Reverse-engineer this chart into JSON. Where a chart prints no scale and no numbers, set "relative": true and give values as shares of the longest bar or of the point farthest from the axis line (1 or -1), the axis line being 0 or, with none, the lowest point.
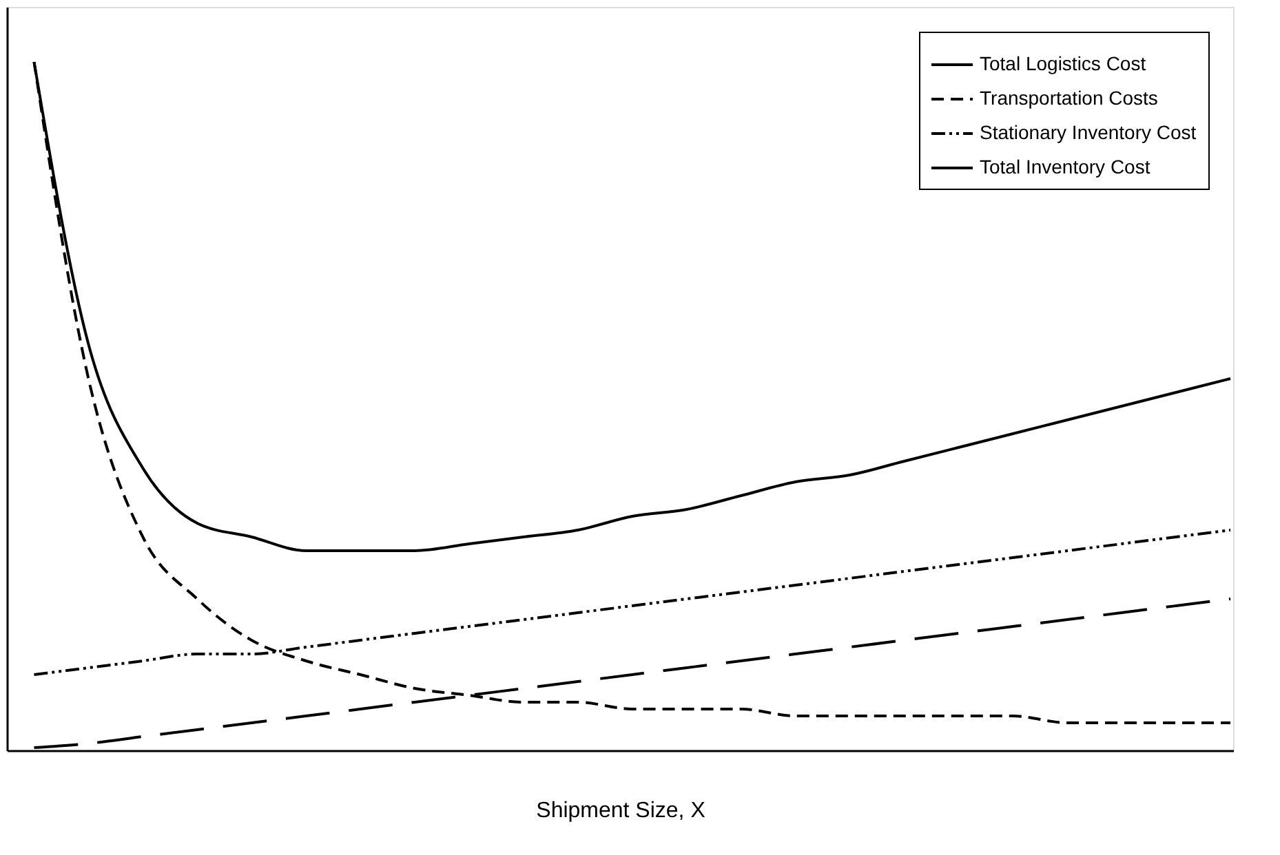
{
  "chart_data": {
    "type": "line",
    "relative": true,
    "xlabel": "Shipment Size, X",
    "tick_labels": false,
    "grid": false,
    "legend": "top right",
    "marker": "none",
    "categories": [
      null,
      null,
      null,
      null,
      null,
      null,
      null,
      null,
      null,
      null,
      null,
      null,
      null,
      null,
      null,
      null,
      null,
      null,
      null,
      null,
      null,
      null,
      null
    ],
    "series": [
      {
        "name": "Total Logistics Cost",
        "color": "#000000",
        "line_style": "solid",
        "values": [
          1.0,
          0.59,
          0.41,
          0.33,
          0.31,
          0.29,
          0.29,
          0.29,
          0.3,
          0.31,
          0.32,
          0.34,
          0.35,
          0.37,
          0.39,
          0.4,
          0.42,
          0.44,
          0.46,
          0.48,
          0.5,
          0.52,
          0.54
        ]
      },
      {
        "name": "Transportation Costs",
        "color": "#000000",
        "line_style": "dashed",
        "values": [
          1.0,
          0.54,
          0.31,
          0.22,
          0.16,
          0.13,
          0.11,
          0.09,
          0.08,
          0.07,
          0.07,
          0.06,
          0.06,
          0.06,
          0.05,
          0.05,
          0.05,
          0.05,
          0.05,
          0.04,
          0.04,
          0.04,
          0.04
        ]
      },
      {
        "name": "Stationary Inventory Cost",
        "color": "#000000",
        "line_style": "dotted",
        "values": [
          0.11,
          0.12,
          0.13,
          0.14,
          0.14,
          0.15,
          0.16,
          0.17,
          0.18,
          0.19,
          0.2,
          0.21,
          0.22,
          0.23,
          0.24,
          0.25,
          0.26,
          0.27,
          0.28,
          0.29,
          0.3,
          0.31,
          0.32
        ]
      },
      {
        "name": "Total Inventory Cost",
        "color": "#000000",
        "line_style": "dashed",
        "values": [
          0.004,
          0.01,
          0.02,
          0.03,
          0.04,
          0.05,
          0.06,
          0.07,
          0.08,
          0.09,
          0.1,
          0.11,
          0.12,
          0.13,
          0.14,
          0.15,
          0.16,
          0.17,
          0.18,
          0.19,
          0.2,
          0.21,
          0.22
        ]
      }
    ]
  }
}
